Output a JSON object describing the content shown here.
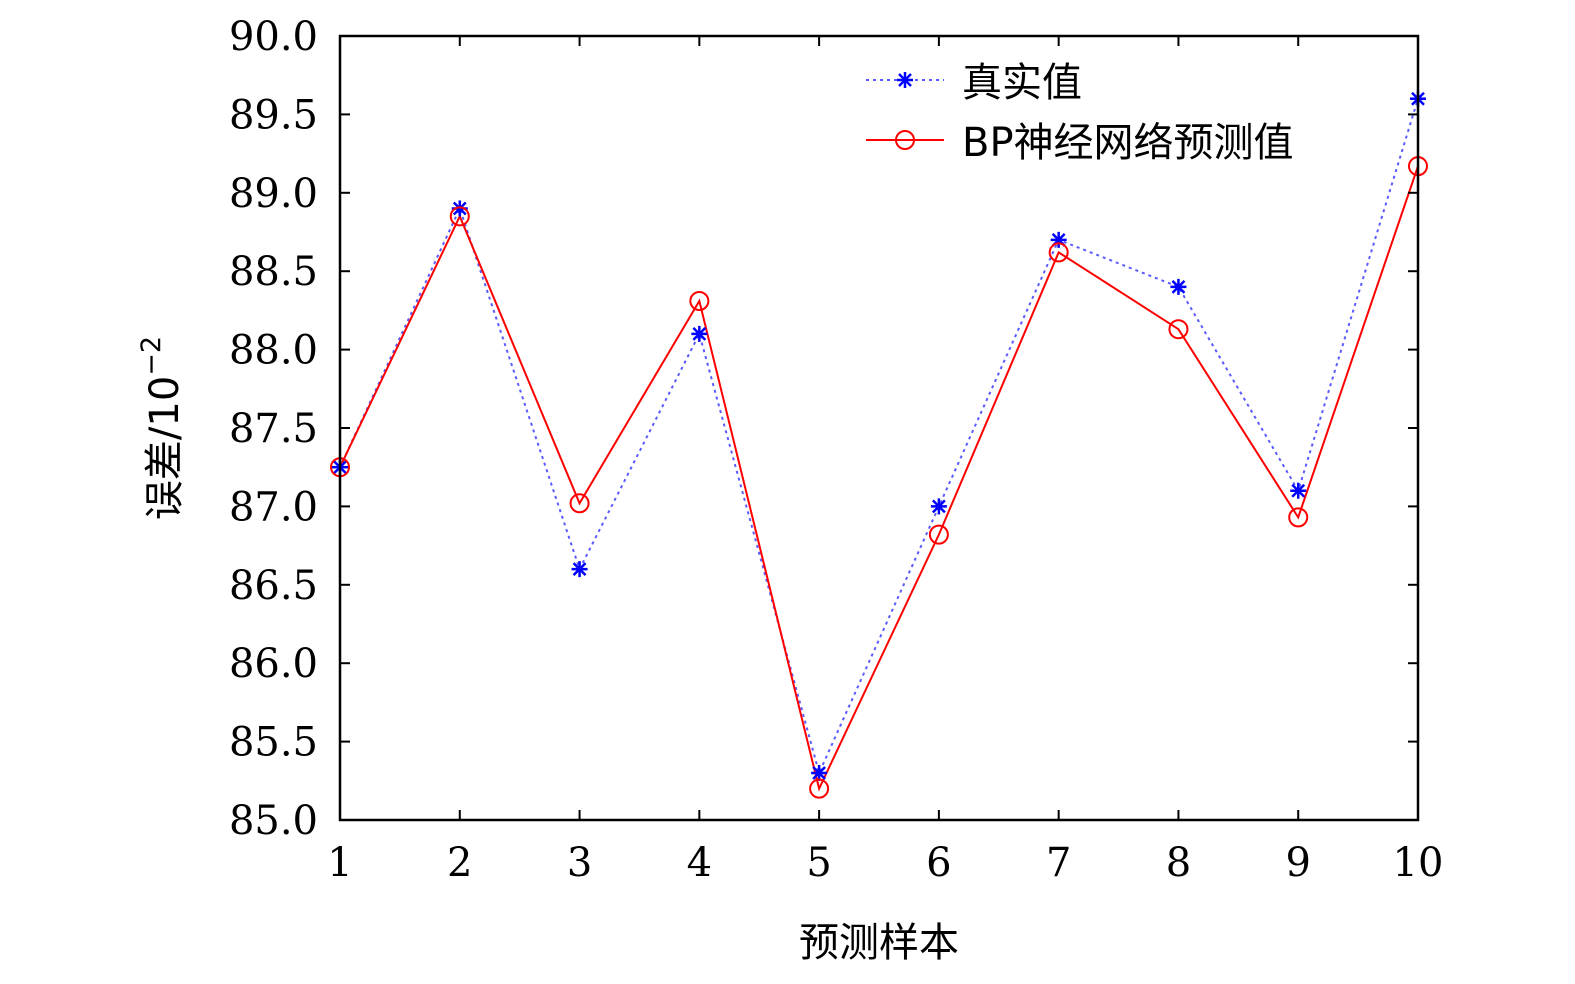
{
  "chart_data": {
    "type": "line",
    "xlabel": "预测样本",
    "ylabel": "误差/10",
    "ylabel_exponent": "−2",
    "x": [
      1,
      2,
      3,
      4,
      5,
      6,
      7,
      8,
      9,
      10
    ],
    "xlim": [
      1,
      10
    ],
    "ylim": [
      85.0,
      90.0
    ],
    "x_ticks": [
      "1",
      "2",
      "3",
      "4",
      "5",
      "6",
      "7",
      "8",
      "9",
      "10"
    ],
    "y_ticks": [
      "85.0",
      "85.5",
      "86.0",
      "86.5",
      "87.0",
      "87.5",
      "88.0",
      "88.5",
      "89.0",
      "89.5",
      "90.0"
    ],
    "grid": false,
    "legend_position": "top-right",
    "series": [
      {
        "name": "真实值",
        "color": "#0000ff",
        "line_style": "dotted",
        "marker": "asterisk",
        "values": [
          87.25,
          88.9,
          86.6,
          88.1,
          85.3,
          87.0,
          88.7,
          88.4,
          87.1,
          89.6
        ]
      },
      {
        "name": "BP神经网络预测值",
        "color": "#ff0000",
        "line_style": "solid",
        "marker": "circle",
        "values": [
          87.25,
          88.85,
          87.02,
          88.31,
          85.2,
          86.82,
          88.62,
          88.13,
          86.93,
          89.17
        ]
      }
    ]
  }
}
